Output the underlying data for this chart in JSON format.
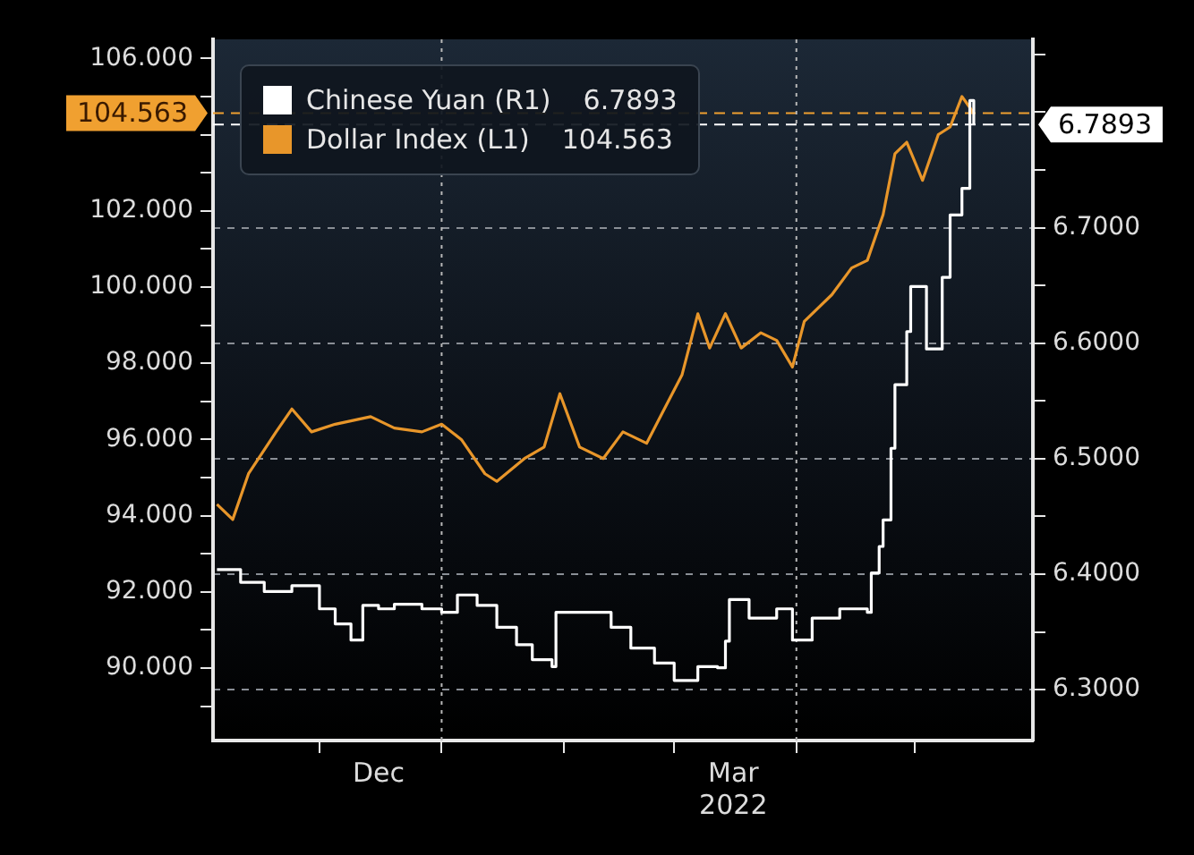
{
  "chart_data": {
    "type": "line",
    "series": [
      {
        "name": "Chinese Yuan (R1)",
        "type": "step",
        "axis": "y2",
        "color": "#ffffff",
        "x": [
          "2021-11-05",
          "2021-11-11",
          "2021-11-17",
          "2021-11-24",
          "2021-12-01",
          "2021-12-05",
          "2021-12-09",
          "2021-12-12",
          "2021-12-16",
          "2021-12-20",
          "2021-12-27",
          "2022-01-01",
          "2022-01-05",
          "2022-01-10",
          "2022-01-15",
          "2022-01-20",
          "2022-01-24",
          "2022-01-29",
          "2022-01-30",
          "2022-02-07",
          "2022-02-13",
          "2022-02-18",
          "2022-02-24",
          "2022-03-01",
          "2022-03-07",
          "2022-03-12",
          "2022-03-14",
          "2022-03-15",
          "2022-03-20",
          "2022-03-27",
          "2022-03-31",
          "2022-04-05",
          "2022-04-12",
          "2022-04-19",
          "2022-04-20",
          "2022-04-22",
          "2022-04-23",
          "2022-04-25",
          "2022-04-26",
          "2022-04-29",
          "2022-04-30",
          "2022-05-04",
          "2022-05-08",
          "2022-05-10",
          "2022-05-13",
          "2022-05-15",
          "2022-05-16"
        ],
        "values": [
          6.404,
          6.393,
          6.385,
          6.39,
          6.37,
          6.357,
          6.343,
          6.373,
          6.37,
          6.374,
          6.37,
          6.367,
          6.382,
          6.373,
          6.354,
          6.339,
          6.326,
          6.32,
          6.367,
          6.367,
          6.354,
          6.336,
          6.323,
          6.308,
          6.32,
          6.319,
          6.342,
          6.378,
          6.362,
          6.37,
          6.343,
          6.362,
          6.37,
          6.367,
          6.401,
          6.424,
          6.447,
          6.509,
          6.564,
          6.61,
          6.649,
          6.595,
          6.657,
          6.711,
          6.734,
          6.81,
          6.7893
        ]
      },
      {
        "name": "Dollar Index (L1)",
        "type": "line",
        "axis": "y",
        "color": "#e8962a",
        "x": [
          "2021-11-05",
          "2021-11-09",
          "2021-11-13",
          "2021-11-20",
          "2021-11-24",
          "2021-11-29",
          "2021-12-05",
          "2021-12-14",
          "2021-12-20",
          "2021-12-27",
          "2022-01-01",
          "2022-01-06",
          "2022-01-12",
          "2022-01-15",
          "2022-01-22",
          "2022-01-27",
          "2022-01-31",
          "2022-02-05",
          "2022-02-11",
          "2022-02-16",
          "2022-02-22",
          "2022-02-26",
          "2022-03-03",
          "2022-03-07",
          "2022-03-10",
          "2022-03-14",
          "2022-03-18",
          "2022-03-23",
          "2022-03-27",
          "2022-03-31",
          "2022-04-03",
          "2022-04-10",
          "2022-04-15",
          "2022-04-19",
          "2022-04-23",
          "2022-04-26",
          "2022-04-29",
          "2022-05-03",
          "2022-05-07",
          "2022-05-10",
          "2022-05-13",
          "2022-05-16"
        ],
        "values": [
          94.3,
          93.9,
          95.1,
          96.2,
          96.8,
          96.2,
          96.4,
          96.6,
          96.3,
          96.2,
          96.4,
          96.0,
          95.1,
          94.9,
          95.5,
          95.8,
          97.2,
          95.8,
          95.5,
          96.2,
          95.9,
          96.7,
          97.7,
          99.3,
          98.4,
          99.3,
          98.4,
          98.8,
          98.6,
          97.9,
          99.1,
          99.8,
          100.5,
          100.7,
          101.9,
          103.5,
          103.8,
          102.8,
          104.0,
          104.2,
          105.0,
          104.563
        ]
      }
    ],
    "xlim": [
      "2021-11-04",
      "2022-05-31"
    ],
    "xticks": [
      {
        "value": "2021-12-01",
        "label": null
      },
      {
        "value": "2021-12-16",
        "label": "Dec"
      },
      {
        "value": "2022-01-01",
        "label": null
      },
      {
        "value": "2022-02-01",
        "label": null
      },
      {
        "value": "2022-03-01",
        "label": null
      },
      {
        "value": "2022-03-16",
        "label": "Mar\n2022"
      },
      {
        "value": "2022-04-01",
        "label": null
      },
      {
        "value": "2022-05-01",
        "label": null
      }
    ],
    "ylim": [
      88.1,
      106.5
    ],
    "yticks": [
      {
        "value": 89,
        "label": null
      },
      {
        "value": 90,
        "label": "90.000"
      },
      {
        "value": 91,
        "label": null
      },
      {
        "value": 92,
        "label": "92.000"
      },
      {
        "value": 93,
        "label": null
      },
      {
        "value": 94,
        "label": "94.000"
      },
      {
        "value": 95,
        "label": null
      },
      {
        "value": 96,
        "label": "96.000"
      },
      {
        "value": 97,
        "label": null
      },
      {
        "value": 98,
        "label": "98.000"
      },
      {
        "value": 99,
        "label": null
      },
      {
        "value": 100,
        "label": "100.000"
      },
      {
        "value": 101,
        "label": null
      },
      {
        "value": 102,
        "label": "102.000"
      },
      {
        "value": 103,
        "label": null
      },
      {
        "value": 104,
        "label": null
      },
      {
        "value": 105,
        "label": null
      },
      {
        "value": 106,
        "label": "106.000"
      }
    ],
    "y2lim": [
      6.256,
      6.863
    ],
    "y2ticks": [
      {
        "value": 6.3,
        "label": "6.3000"
      },
      {
        "value": 6.35,
        "label": null
      },
      {
        "value": 6.4,
        "label": "6.4000"
      },
      {
        "value": 6.45,
        "label": null
      },
      {
        "value": 6.5,
        "label": "6.5000"
      },
      {
        "value": 6.55,
        "label": null
      },
      {
        "value": 6.6,
        "label": "6.6000"
      },
      {
        "value": 6.65,
        "label": null
      },
      {
        "value": 6.7,
        "label": "6.7000"
      },
      {
        "value": 6.75,
        "label": null
      },
      {
        "value": 6.8,
        "label": null
      },
      {
        "value": 6.85,
        "label": null
      }
    ],
    "ref_lines": [
      {
        "axis": "y",
        "value": 104.563,
        "label": "104.563",
        "color": "#f0a030",
        "line_style": "dashed"
      },
      {
        "axis": "y2",
        "value": 6.7893,
        "label": "6.7893",
        "color": "#ffffff",
        "line_style": "dashed"
      },
      {
        "axis": "x",
        "value": "2022-01-01",
        "label": null,
        "color": "#b8b8b8",
        "line_style": "dotted"
      },
      {
        "axis": "x",
        "value": "2022-04-01",
        "label": null,
        "color": "#b8b8b8",
        "line_style": "dotted"
      }
    ],
    "grid": "y",
    "legend": "top left"
  }
}
